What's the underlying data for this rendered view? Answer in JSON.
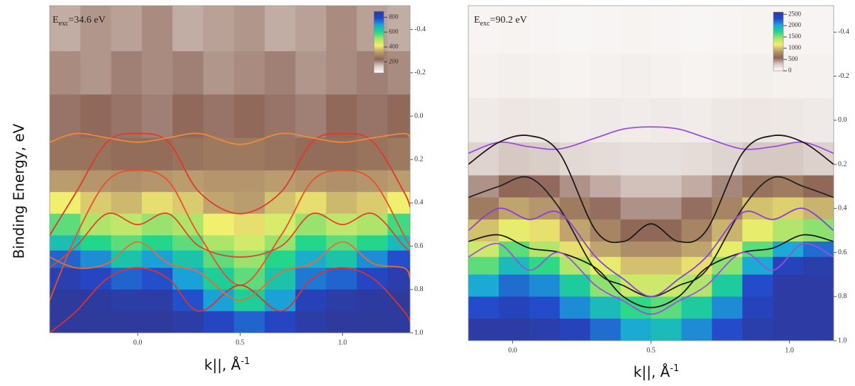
{
  "chart_data": [
    {
      "type": "heatmap",
      "ylabel": "Binding Energy, eV",
      "annotation": {
        "main": "E",
        "sub": "exc",
        "rest": "=34.6 eV"
      },
      "xlabel": {
        "text": "k||, Å",
        "sup": "-1"
      },
      "xlim": [
        -0.43,
        1.33
      ],
      "ylim": [
        -0.51,
        1.0
      ],
      "inverted_y": true,
      "xticks": [
        {
          "value": 0,
          "label": "0.0"
        },
        0.5,
        {
          "value": 1,
          "label": "1.0"
        }
      ],
      "yticks": [
        -0.4,
        -0.2,
        {
          "value": 0,
          "label": "0.0"
        },
        0.2,
        0.4,
        0.6,
        0.8,
        {
          "value": 1,
          "label": "1.0"
        }
      ],
      "colorbar": {
        "lim": [
          50,
          880
        ],
        "ticks": [
          200,
          400,
          600,
          800
        ],
        "colormap": [
          "#ffffff",
          "#d9ccc6",
          "#8c6456",
          "#b89a6e",
          "#f2ef6e",
          "#a6e36a",
          "#1fd68a",
          "#1aa6d9",
          "#2447c9",
          "#2e3a9c"
        ]
      },
      "heatmap": {
        "xbins": [
          -0.43,
          -0.28,
          -0.13,
          0.02,
          0.17,
          0.32,
          0.47,
          0.62,
          0.77,
          0.92,
          1.07,
          1.22,
          1.33
        ],
        "ybins": [
          -0.51,
          -0.3,
          -0.1,
          0.1,
          0.25,
          0.35,
          0.45,
          0.55,
          0.62,
          0.7,
          0.8,
          0.9,
          1.0
        ],
        "z": [
          [
            170,
            190,
            180,
            200,
            170,
            180,
            190,
            170,
            180,
            200,
            180,
            170
          ],
          [
            200,
            190,
            210,
            200,
            210,
            190,
            200,
            210,
            190,
            200,
            210,
            200
          ],
          [
            220,
            230,
            220,
            210,
            230,
            220,
            230,
            220,
            210,
            230,
            220,
            230
          ],
          [
            260,
            260,
            250,
            250,
            260,
            270,
            270,
            260,
            250,
            250,
            260,
            270
          ],
          [
            330,
            320,
            310,
            320,
            330,
            320,
            320,
            330,
            320,
            310,
            320,
            330
          ],
          [
            420,
            380,
            360,
            400,
            380,
            340,
            330,
            370,
            400,
            360,
            380,
            420
          ],
          [
            560,
            500,
            480,
            520,
            500,
            420,
            400,
            450,
            520,
            480,
            500,
            580
          ],
          [
            650,
            600,
            560,
            600,
            560,
            500,
            460,
            520,
            600,
            560,
            600,
            660
          ],
          [
            760,
            720,
            640,
            700,
            640,
            560,
            520,
            600,
            680,
            640,
            720,
            780
          ],
          [
            840,
            800,
            760,
            780,
            700,
            620,
            560,
            640,
            740,
            760,
            800,
            850
          ],
          [
            880,
            870,
            860,
            860,
            780,
            700,
            620,
            700,
            820,
            860,
            870,
            880
          ],
          [
            880,
            880,
            880,
            880,
            860,
            800,
            760,
            800,
            860,
            880,
            880,
            880
          ]
        ]
      },
      "bands": {
        "x": [
          -0.43,
          -0.3,
          -0.15,
          0,
          0.15,
          0.3,
          0.5,
          0.7,
          0.85,
          1.0,
          1.15,
          1.3,
          1.33
        ],
        "series": [
          {
            "color": "#e0382a",
            "values": [
              0.55,
              0.35,
              0.12,
              0.08,
              0.12,
              0.35,
              0.45,
              0.35,
              0.12,
              0.08,
              0.12,
              0.35,
              0.42
            ]
          },
          {
            "color": "#e8502a",
            "values": [
              0.85,
              0.55,
              0.3,
              0.25,
              0.3,
              0.55,
              0.78,
              0.55,
              0.3,
              0.25,
              0.3,
              0.55,
              0.6
            ]
          },
          {
            "color": "#e0452e",
            "values": [
              0.7,
              0.6,
              0.45,
              0.5,
              0.45,
              0.6,
              0.65,
              0.6,
              0.45,
              0.5,
              0.45,
              0.6,
              0.62
            ]
          },
          {
            "color": "#f08a3a",
            "values": [
              0.12,
              0.08,
              0.1,
              0.12,
              0.1,
              0.08,
              0.13,
              0.08,
              0.1,
              0.12,
              0.1,
              0.08,
              0.1
            ]
          },
          {
            "color": "#d9342c",
            "values": [
              1.0,
              0.9,
              0.75,
              0.7,
              0.75,
              0.9,
              0.78,
              0.9,
              0.75,
              0.7,
              0.75,
              0.9,
              0.95
            ]
          },
          {
            "color": "#ee6a30",
            "values": [
              0.65,
              0.7,
              0.68,
              0.58,
              0.68,
              0.72,
              0.85,
              0.72,
              0.68,
              0.58,
              0.68,
              0.7,
              0.75
            ]
          }
        ]
      }
    },
    {
      "type": "heatmap",
      "annotation": {
        "main": "E",
        "sub": "exc",
        "rest": "=90.2 eV"
      },
      "xlabel": {
        "text": "k||, Å",
        "sup": "-1"
      },
      "xlim": [
        -0.16,
        1.16
      ],
      "ylim": [
        -0.52,
        1.0
      ],
      "inverted_y": true,
      "xticks": [
        {
          "value": 0,
          "label": "0.0"
        },
        0.5,
        {
          "value": 1,
          "label": "1.0"
        }
      ],
      "yticks": [
        -0.4,
        -0.2,
        {
          "value": 0,
          "label": "0.0"
        },
        0.2,
        0.4,
        0.6,
        0.8,
        {
          "value": 1,
          "label": "1.0"
        }
      ],
      "colorbar": {
        "lim": [
          0,
          2600
        ],
        "ticks": [
          0,
          500,
          1000,
          1500,
          2000,
          2500
        ],
        "colormap": [
          "#ffffff",
          "#d9ccc6",
          "#8c6456",
          "#b89a6e",
          "#f2ef6e",
          "#a6e36a",
          "#1fd68a",
          "#1aa6d9",
          "#2447c9",
          "#2e3a9c"
        ]
      },
      "heatmap": {
        "xbins": [
          -0.16,
          -0.05,
          0.06,
          0.17,
          0.28,
          0.39,
          0.5,
          0.61,
          0.72,
          0.83,
          0.94,
          1.05,
          1.16
        ],
        "ybins": [
          -0.52,
          -0.3,
          -0.1,
          0.1,
          0.25,
          0.35,
          0.45,
          0.55,
          0.62,
          0.7,
          0.8,
          0.9,
          1.0
        ],
        "z": [
          [
            60,
            70,
            60,
            50,
            60,
            70,
            60,
            50,
            60,
            70,
            60,
            60
          ],
          [
            80,
            90,
            80,
            70,
            80,
            90,
            80,
            70,
            80,
            90,
            80,
            80
          ],
          [
            120,
            140,
            130,
            110,
            120,
            110,
            120,
            110,
            130,
            140,
            130,
            120
          ],
          [
            250,
            300,
            280,
            220,
            200,
            180,
            180,
            200,
            240,
            300,
            300,
            260
          ],
          [
            450,
            600,
            560,
            450,
            380,
            320,
            320,
            380,
            480,
            650,
            700,
            600
          ],
          [
            700,
            900,
            850,
            700,
            550,
            450,
            450,
            550,
            750,
            1000,
            1050,
            950
          ],
          [
            1000,
            1200,
            1100,
            900,
            750,
            600,
            600,
            750,
            950,
            1200,
            1400,
            1500
          ],
          [
            1300,
            1600,
            1400,
            1100,
            900,
            800,
            800,
            900,
            1200,
            1600,
            2000,
            2200
          ],
          [
            1600,
            1900,
            1700,
            1400,
            1200,
            1000,
            1000,
            1100,
            1500,
            2000,
            2400,
            2500
          ],
          [
            2000,
            2200,
            2100,
            1800,
            1500,
            1300,
            1300,
            1400,
            1800,
            2300,
            2550,
            2550
          ],
          [
            2300,
            2400,
            2300,
            2100,
            1900,
            1700,
            1600,
            1800,
            2100,
            2400,
            2550,
            2550
          ],
          [
            2550,
            2550,
            2500,
            2400,
            2200,
            2000,
            1900,
            2100,
            2300,
            2500,
            2550,
            2550
          ]
        ]
      },
      "bands": {
        "x": [
          -0.16,
          -0.05,
          0.06,
          0.17,
          0.3,
          0.4,
          0.5,
          0.6,
          0.7,
          0.83,
          0.94,
          1.05,
          1.16
        ],
        "series": [
          {
            "color": "#9b4fe0",
            "values": [
              0.15,
              0.1,
              0.12,
              0.13,
              0.08,
              0.04,
              0.03,
              0.04,
              0.08,
              0.13,
              0.12,
              0.1,
              0.15
            ]
          },
          {
            "color": "#1a1a1a",
            "values": [
              0.2,
              0.1,
              0.07,
              0.15,
              0.5,
              0.55,
              0.47,
              0.55,
              0.5,
              0.15,
              0.07,
              0.1,
              0.2
            ]
          },
          {
            "color": "#222222",
            "values": [
              0.35,
              0.3,
              0.26,
              0.4,
              0.68,
              0.75,
              0.8,
              0.75,
              0.68,
              0.4,
              0.26,
              0.3,
              0.35
            ]
          },
          {
            "color": "#8a3fd6",
            "values": [
              0.5,
              0.4,
              0.45,
              0.42,
              0.62,
              0.72,
              0.8,
              0.72,
              0.62,
              0.42,
              0.45,
              0.4,
              0.5
            ]
          },
          {
            "color": "#1a1a1a",
            "values": [
              0.55,
              0.52,
              0.58,
              0.6,
              0.67,
              0.8,
              0.85,
              0.8,
              0.67,
              0.6,
              0.58,
              0.52,
              0.55
            ]
          },
          {
            "color": "#9b4fe0",
            "values": [
              0.62,
              0.56,
              0.68,
              0.6,
              0.75,
              0.82,
              0.88,
              0.82,
              0.75,
              0.6,
              0.68,
              0.56,
              0.62
            ]
          }
        ]
      }
    }
  ]
}
